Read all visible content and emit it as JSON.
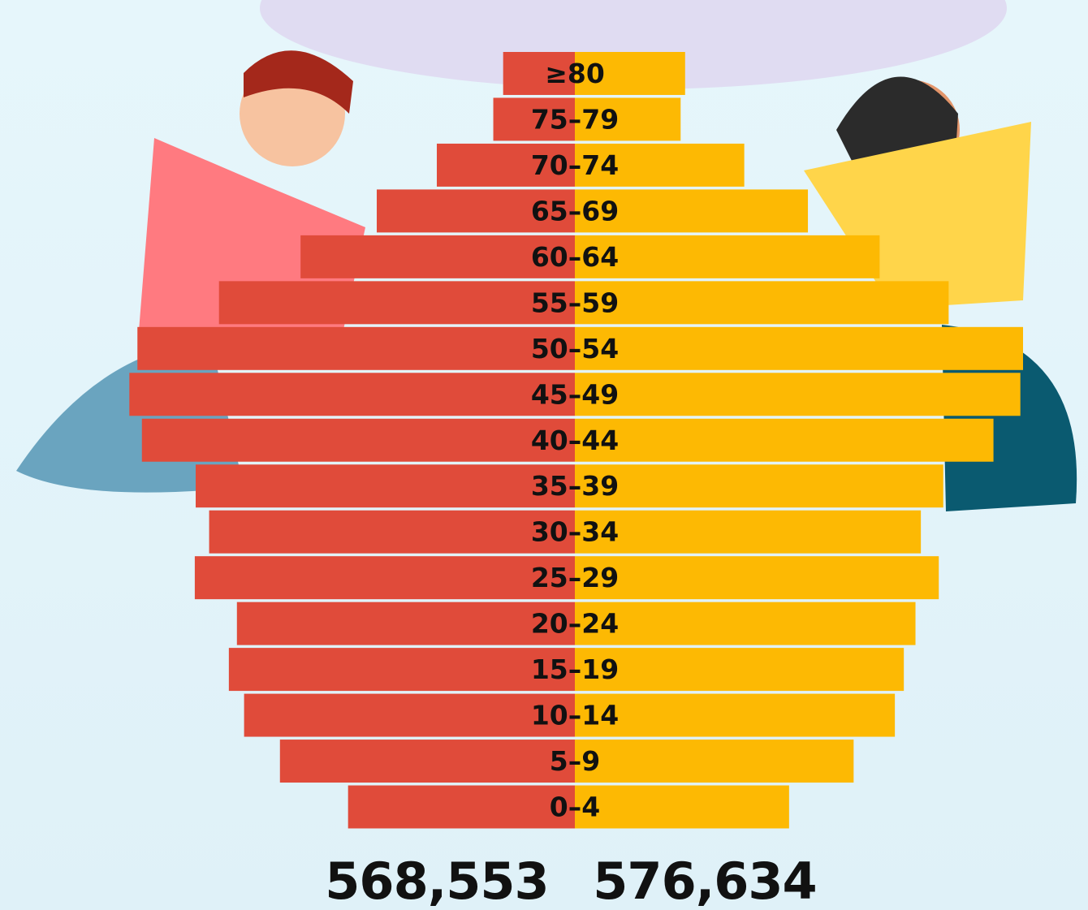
{
  "chart_data": {
    "type": "pyramid",
    "categories": [
      "≥80",
      "75–79",
      "70–74",
      "65–69",
      "60–64",
      "55–59",
      "50–54",
      "45–49",
      "40–44",
      "35–39",
      "30–34",
      "25–29",
      "20–24",
      "15–19",
      "10–14",
      "5–9",
      "0–4"
    ],
    "series": [
      {
        "color": "#e04b3a",
        "side": "left",
        "values": [
          8000,
          9100,
          15400,
          22100,
          30600,
          39700,
          48800,
          49700,
          48300,
          42300,
          40800,
          42400,
          37700,
          38600,
          36900,
          32900,
          25300
        ]
      },
      {
        "color": "#fdb903",
        "side": "right",
        "values": [
          12300,
          11800,
          18900,
          26000,
          34000,
          41700,
          50000,
          49700,
          46700,
          41100,
          38600,
          40600,
          38000,
          36700,
          35700,
          31100,
          23900
        ]
      }
    ],
    "totals": [
      "568,553",
      "576,634"
    ]
  }
}
